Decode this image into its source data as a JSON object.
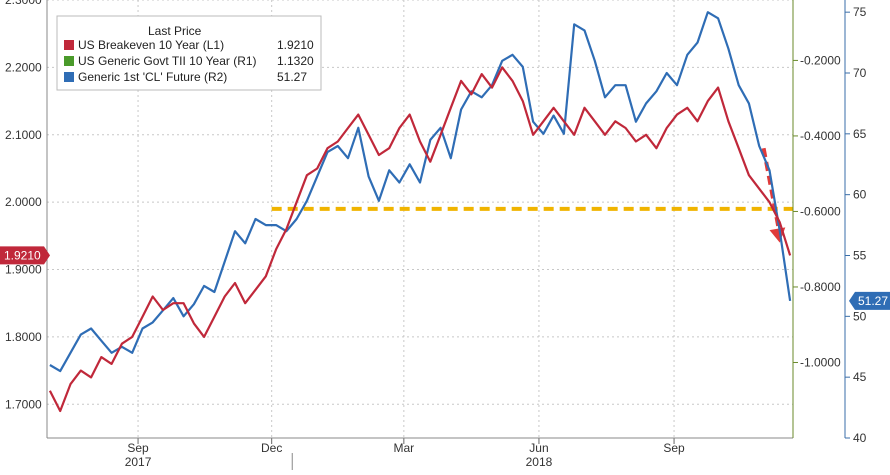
{
  "chart_data": {
    "type": "line",
    "title": "",
    "legend": {
      "title": "Last Price",
      "placement": "top-left",
      "entries": [
        {
          "label": "US Breakeven 10 Year  (L1)",
          "value": "1.9210",
          "color": "#c0283a"
        },
        {
          "label": "US Generic Govt TII 10 Year  (R1)",
          "value": "1.1320",
          "color": "#4a9a2a"
        },
        {
          "label": "Generic 1st 'CL' Future  (R2)",
          "value": "51.27",
          "color": "#2f6db5"
        }
      ]
    },
    "x_axis": {
      "range": [
        "2017-07-01",
        "2018-11-21"
      ],
      "month_ticks": [
        "Sep",
        "Dec",
        "Mar",
        "Jun",
        "Sep"
      ],
      "month_tick_dates": [
        "2017-09-01",
        "2017-12-01",
        "2018-03-01",
        "2018-06-01",
        "2018-09-01"
      ],
      "year_labels": [
        "2017",
        "2018"
      ],
      "year_label_dates": [
        "2017-09-01",
        "2018-06-01"
      ]
    },
    "y_axes": {
      "L1": {
        "ticks": [
          "1.7000",
          "1.8000",
          "1.9000",
          "2.0000",
          "2.1000",
          "2.2000",
          "2.3000"
        ],
        "ylim": [
          1.65,
          2.3
        ]
      },
      "R1": {
        "ticks": [
          "-1.0000",
          "-0.8000",
          "-0.6000",
          "-0.4000",
          "-0.2000"
        ],
        "ylim": [
          -1.2,
          -0.04
        ]
      },
      "R2": {
        "ticks": [
          "40",
          "45",
          "50",
          "55",
          "60",
          "65",
          "70",
          "75"
        ],
        "ylim": [
          40,
          76
        ]
      }
    },
    "grid": true,
    "last_value_labels": {
      "L1": "1.9210",
      "R2": "51.27"
    },
    "series": [
      {
        "name": "US Breakeven 10 Year",
        "axis": "L1",
        "color": "#c0283a",
        "x": [
          "2017-07-03",
          "2017-07-10",
          "2017-07-17",
          "2017-07-24",
          "2017-07-31",
          "2017-08-07",
          "2017-08-14",
          "2017-08-21",
          "2017-08-28",
          "2017-09-04",
          "2017-09-11",
          "2017-09-18",
          "2017-09-25",
          "2017-10-02",
          "2017-10-09",
          "2017-10-16",
          "2017-10-23",
          "2017-10-30",
          "2017-11-06",
          "2017-11-13",
          "2017-11-20",
          "2017-11-27",
          "2017-12-04",
          "2017-12-11",
          "2017-12-18",
          "2017-12-25",
          "2018-01-01",
          "2018-01-08",
          "2018-01-15",
          "2018-01-22",
          "2018-01-29",
          "2018-02-05",
          "2018-02-12",
          "2018-02-19",
          "2018-02-26",
          "2018-03-05",
          "2018-03-12",
          "2018-03-19",
          "2018-03-26",
          "2018-04-02",
          "2018-04-09",
          "2018-04-16",
          "2018-04-23",
          "2018-04-30",
          "2018-05-07",
          "2018-05-14",
          "2018-05-21",
          "2018-05-28",
          "2018-06-04",
          "2018-06-11",
          "2018-06-18",
          "2018-06-25",
          "2018-07-02",
          "2018-07-09",
          "2018-07-16",
          "2018-07-23",
          "2018-07-30",
          "2018-08-06",
          "2018-08-13",
          "2018-08-20",
          "2018-08-27",
          "2018-09-03",
          "2018-09-10",
          "2018-09-17",
          "2018-09-24",
          "2018-10-01",
          "2018-10-08",
          "2018-10-15",
          "2018-10-22",
          "2018-10-29",
          "2018-11-05",
          "2018-11-12",
          "2018-11-19"
        ],
        "values": [
          1.72,
          1.69,
          1.73,
          1.75,
          1.74,
          1.77,
          1.76,
          1.79,
          1.8,
          1.83,
          1.86,
          1.84,
          1.85,
          1.85,
          1.82,
          1.8,
          1.83,
          1.86,
          1.88,
          1.85,
          1.87,
          1.89,
          1.93,
          1.96,
          2.0,
          2.04,
          2.05,
          2.08,
          2.09,
          2.11,
          2.13,
          2.1,
          2.07,
          2.08,
          2.11,
          2.13,
          2.09,
          2.06,
          2.1,
          2.14,
          2.18,
          2.16,
          2.19,
          2.17,
          2.2,
          2.18,
          2.15,
          2.1,
          2.12,
          2.14,
          2.12,
          2.1,
          2.14,
          2.12,
          2.1,
          2.12,
          2.11,
          2.09,
          2.1,
          2.08,
          2.11,
          2.13,
          2.14,
          2.12,
          2.15,
          2.17,
          2.12,
          2.08,
          2.04,
          2.02,
          2.0,
          1.97,
          1.921
        ]
      },
      {
        "name": "Generic 1st 'CL' Future",
        "axis": "R2",
        "color": "#2f6db5",
        "x": [
          "2017-07-03",
          "2017-07-10",
          "2017-07-17",
          "2017-07-24",
          "2017-07-31",
          "2017-08-07",
          "2017-08-14",
          "2017-08-21",
          "2017-08-28",
          "2017-09-04",
          "2017-09-11",
          "2017-09-18",
          "2017-09-25",
          "2017-10-02",
          "2017-10-09",
          "2017-10-16",
          "2017-10-23",
          "2017-10-30",
          "2017-11-06",
          "2017-11-13",
          "2017-11-20",
          "2017-11-27",
          "2017-12-04",
          "2017-12-11",
          "2017-12-18",
          "2017-12-25",
          "2018-01-01",
          "2018-01-08",
          "2018-01-15",
          "2018-01-22",
          "2018-01-29",
          "2018-02-05",
          "2018-02-12",
          "2018-02-19",
          "2018-02-26",
          "2018-03-05",
          "2018-03-12",
          "2018-03-19",
          "2018-03-26",
          "2018-04-02",
          "2018-04-09",
          "2018-04-16",
          "2018-04-23",
          "2018-04-30",
          "2018-05-07",
          "2018-05-14",
          "2018-05-21",
          "2018-05-28",
          "2018-06-04",
          "2018-06-11",
          "2018-06-18",
          "2018-06-25",
          "2018-07-02",
          "2018-07-09",
          "2018-07-16",
          "2018-07-23",
          "2018-07-30",
          "2018-08-06",
          "2018-08-13",
          "2018-08-20",
          "2018-08-27",
          "2018-09-03",
          "2018-09-10",
          "2018-09-17",
          "2018-09-24",
          "2018-10-01",
          "2018-10-08",
          "2018-10-15",
          "2018-10-22",
          "2018-10-29",
          "2018-11-05",
          "2018-11-12",
          "2018-11-19"
        ],
        "values": [
          46.0,
          45.5,
          47.0,
          48.5,
          49.0,
          48.0,
          47.0,
          47.5,
          47.0,
          49.0,
          49.5,
          50.5,
          51.5,
          50.0,
          51.0,
          52.5,
          52.0,
          54.5,
          57.0,
          56.0,
          58.0,
          57.5,
          57.5,
          57.0,
          58.0,
          59.5,
          61.5,
          63.5,
          64.0,
          63.0,
          65.5,
          61.5,
          59.5,
          62.0,
          61.0,
          62.5,
          61.0,
          64.5,
          65.5,
          63.0,
          67.0,
          68.5,
          68.0,
          69.0,
          71.0,
          71.5,
          70.5,
          66.0,
          65.0,
          66.5,
          65.0,
          74.0,
          73.5,
          71.0,
          68.0,
          69.0,
          69.0,
          66.0,
          67.5,
          68.5,
          70.0,
          69.0,
          71.5,
          72.5,
          75.0,
          74.5,
          72.0,
          69.0,
          67.5,
          64.0,
          62.0,
          57.0,
          51.27
        ]
      }
    ],
    "annotations": [
      {
        "type": "dashed-horizontal",
        "color": "#f0b400",
        "axis": "L1",
        "y": 1.99,
        "from": "2017-12-01",
        "to": "2018-11-25"
      },
      {
        "type": "dashed-arrow",
        "color": "#e03a3a",
        "axis": "L1",
        "from": [
          "2018-11-01",
          2.08
        ],
        "to": [
          "2018-11-12",
          1.94
        ]
      }
    ]
  }
}
